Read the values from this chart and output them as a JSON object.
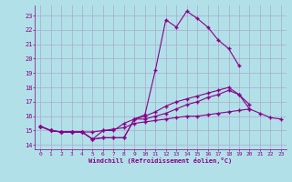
{
  "xlabel": "Windchill (Refroidissement éolien,°C)",
  "bg_color": "#b2e0e8",
  "grid_color": "#aaaacc",
  "line_color": "#880088",
  "xlim": [
    -0.5,
    23.5
  ],
  "ylim": [
    13.7,
    23.7
  ],
  "xticks": [
    0,
    1,
    2,
    3,
    4,
    5,
    6,
    7,
    8,
    9,
    10,
    11,
    12,
    13,
    14,
    15,
    16,
    17,
    18,
    19,
    20,
    21,
    22,
    23
  ],
  "yticks": [
    14,
    15,
    16,
    17,
    18,
    19,
    20,
    21,
    22,
    23
  ],
  "series": [
    [
      15.3,
      15.0,
      14.9,
      14.9,
      14.9,
      14.4,
      14.5,
      14.5,
      14.5,
      15.8,
      16.1,
      19.2,
      22.7,
      22.2,
      23.3,
      22.8,
      22.2,
      21.3,
      20.7,
      19.5,
      null,
      null,
      null,
      null
    ],
    [
      15.3,
      15.0,
      14.9,
      14.9,
      14.9,
      14.4,
      14.5,
      14.5,
      14.5,
      15.8,
      15.8,
      16.0,
      16.2,
      16.5,
      16.8,
      17.0,
      17.3,
      17.5,
      17.8,
      17.5,
      16.5,
      null,
      null,
      null
    ],
    [
      15.3,
      15.0,
      14.9,
      14.9,
      14.9,
      14.4,
      15.0,
      15.0,
      15.5,
      15.8,
      16.0,
      16.3,
      16.7,
      17.0,
      17.2,
      17.4,
      17.6,
      17.8,
      18.0,
      17.5,
      16.8,
      null,
      null,
      null
    ],
    [
      15.3,
      15.0,
      14.9,
      14.9,
      14.9,
      14.9,
      15.0,
      15.1,
      15.2,
      15.5,
      15.6,
      15.7,
      15.8,
      15.9,
      16.0,
      16.0,
      16.1,
      16.2,
      16.3,
      16.4,
      16.5,
      16.2,
      15.9,
      15.8
    ]
  ]
}
